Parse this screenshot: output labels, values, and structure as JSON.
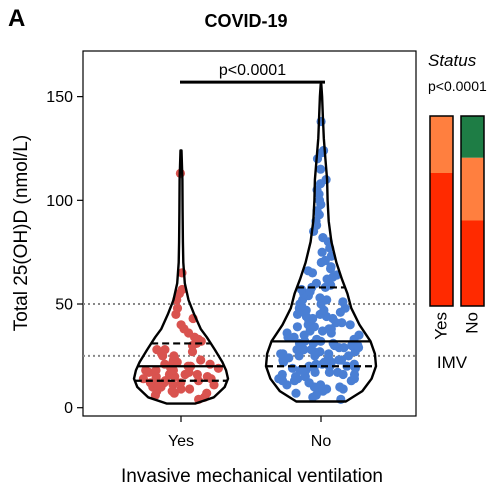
{
  "panel_letter": "A",
  "chart_data": [
    {
      "type": "violin",
      "title": "COVID-19",
      "xlabel": "Invasive mechanical ventilation",
      "ylabel": "Total 25(OH)D (nmol/L)",
      "ylim": [
        -4,
        172
      ],
      "yticks": [
        0,
        50,
        100,
        150
      ],
      "categories": [
        "Yes",
        "No"
      ],
      "reference_lines": [
        25,
        50
      ],
      "significance": {
        "groups": [
          "Yes",
          "No"
        ],
        "label": "p<0.0001"
      },
      "groups": [
        {
          "name": "Yes",
          "color": "#d9534f",
          "range": [
            2,
            124
          ],
          "quartiles": [
            13,
            20,
            31
          ],
          "density": [
            [
              2,
              0.3
            ],
            [
              5,
              0.7
            ],
            [
              10,
              0.93
            ],
            [
              14,
              1.0
            ],
            [
              18,
              0.96
            ],
            [
              22,
              0.88
            ],
            [
              28,
              0.72
            ],
            [
              34,
              0.55
            ],
            [
              38,
              0.42
            ],
            [
              45,
              0.28
            ],
            [
              52,
              0.16
            ],
            [
              60,
              0.08
            ],
            [
              70,
              0.05
            ],
            [
              80,
              0.04
            ],
            [
              95,
              0.035
            ],
            [
              110,
              0.03
            ],
            [
              124,
              0.01
            ]
          ],
          "points": [
            4,
            5,
            6,
            7,
            7,
            8,
            8,
            9,
            9,
            10,
            10,
            11,
            11,
            11,
            12,
            12,
            12,
            13,
            13,
            13,
            14,
            14,
            14,
            15,
            15,
            15,
            16,
            16,
            16,
            17,
            17,
            18,
            18,
            18,
            19,
            19,
            20,
            20,
            21,
            21,
            22,
            22,
            23,
            23,
            24,
            25,
            25,
            26,
            27,
            28,
            28,
            30,
            31,
            32,
            33,
            34,
            36,
            38,
            40,
            43,
            45,
            48,
            52,
            55,
            57,
            65,
            113
          ]
        },
        {
          "name": "No",
          "color": "#4a7fd4",
          "range": [
            3,
            156
          ],
          "quartiles": [
            20,
            32,
            58
          ],
          "density": [
            [
              3,
              0.45
            ],
            [
              8,
              0.75
            ],
            [
              14,
              0.92
            ],
            [
              20,
              1.0
            ],
            [
              26,
              0.98
            ],
            [
              32,
              0.9
            ],
            [
              40,
              0.7
            ],
            [
              48,
              0.55
            ],
            [
              55,
              0.48
            ],
            [
              62,
              0.38
            ],
            [
              70,
              0.28
            ],
            [
              80,
              0.19
            ],
            [
              90,
              0.14
            ],
            [
              100,
              0.12
            ],
            [
              110,
              0.11
            ],
            [
              120,
              0.08
            ],
            [
              130,
              0.05
            ],
            [
              140,
              0.035
            ],
            [
              150,
              0.02
            ],
            [
              156,
              0.005
            ]
          ],
          "points": [
            4,
            5,
            6,
            7,
            8,
            8,
            9,
            9,
            10,
            10,
            11,
            11,
            12,
            12,
            13,
            13,
            13,
            14,
            14,
            14,
            15,
            15,
            15,
            16,
            16,
            16,
            17,
            17,
            17,
            18,
            18,
            18,
            19,
            19,
            19,
            20,
            20,
            20,
            20,
            21,
            21,
            21,
            22,
            22,
            22,
            23,
            23,
            23,
            24,
            24,
            24,
            25,
            25,
            25,
            26,
            26,
            26,
            27,
            27,
            27,
            28,
            28,
            28,
            29,
            29,
            29,
            30,
            30,
            30,
            31,
            31,
            31,
            32,
            32,
            32,
            33,
            33,
            34,
            34,
            35,
            35,
            36,
            36,
            37,
            37,
            38,
            38,
            39,
            39,
            40,
            40,
            41,
            41,
            42,
            42,
            43,
            43,
            44,
            44,
            45,
            45,
            46,
            46,
            47,
            47,
            48,
            48,
            49,
            50,
            50,
            51,
            52,
            52,
            53,
            54,
            55,
            55,
            56,
            57,
            58,
            58,
            59,
            60,
            61,
            62,
            63,
            64,
            65,
            66,
            67,
            68,
            70,
            71,
            73,
            75,
            77,
            80,
            82,
            85,
            88,
            90,
            93,
            95,
            98,
            100,
            103,
            105,
            108,
            110,
            115,
            120,
            123,
            124,
            138
          ]
        }
      ]
    },
    {
      "type": "stacked_bar",
      "title": "Status",
      "p_label": "p<0.0001",
      "xlabel": "IMV",
      "categories": [
        "Yes",
        "No"
      ],
      "stack_order": [
        "dark_green",
        "light_orange",
        "red_orange"
      ],
      "colors": {
        "dark_green": "#1e7d45",
        "light_orange": "#ff7f3f",
        "red_orange": "#ff2a00"
      },
      "series": [
        {
          "values": [
            0.0,
            0.22
          ]
        },
        {
          "values": [
            0.3,
            0.33
          ]
        },
        {
          "values": [
            0.7,
            0.45
          ]
        }
      ]
    }
  ]
}
